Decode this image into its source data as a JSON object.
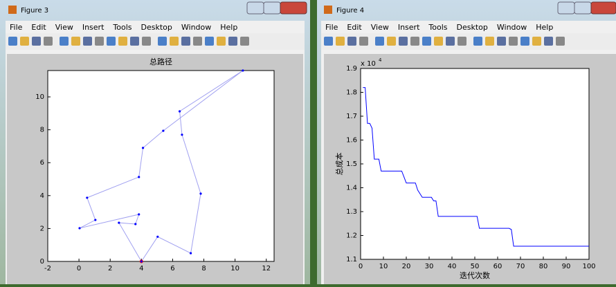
{
  "windows": [
    {
      "title": "Figure 3",
      "menu": [
        "File",
        "Edit",
        "View",
        "Insert",
        "Tools",
        "Desktop",
        "Window",
        "Help"
      ]
    },
    {
      "title": "Figure 4",
      "menu": [
        "File",
        "Edit",
        "View",
        "Insert",
        "Tools",
        "Desktop",
        "Window",
        "Help"
      ]
    }
  ],
  "chart_data": [
    {
      "type": "line",
      "title": "总路径",
      "x": [
        4.0,
        2.56,
        3.62,
        3.84,
        0.04,
        1.05,
        0.52,
        3.84,
        4.1,
        5.4,
        10.5,
        6.45,
        6.6,
        7.8,
        7.16,
        5.04,
        4.0
      ],
      "values": [
        0.0,
        2.35,
        2.27,
        2.86,
        2.02,
        2.52,
        3.87,
        5.13,
        6.9,
        7.94,
        11.6,
        9.12,
        7.7,
        4.12,
        0.5,
        1.5,
        0.0
      ],
      "color": "#a0a0f0",
      "marker_color": "#0000ff",
      "start_marker_color": "#ff0000",
      "xlim": [
        -2,
        12.5
      ],
      "xticks": [
        -2,
        0,
        2,
        4,
        6,
        8,
        10,
        12
      ],
      "ylim": [
        0,
        11.6
      ],
      "yticks": [
        0,
        2,
        4,
        6,
        8,
        10
      ]
    },
    {
      "type": "step",
      "x_label": "迭代次数",
      "y_label": "总成本",
      "scale_base": "x 10",
      "scale_exponent": "4",
      "x": [
        1,
        2,
        3,
        4,
        5,
        6,
        8,
        9,
        18,
        19,
        20,
        24,
        25,
        27,
        31,
        32,
        33,
        34,
        51,
        52,
        65,
        66,
        67,
        100
      ],
      "values": [
        18200,
        18200,
        16700,
        16700,
        16500,
        15200,
        15200,
        14700,
        14700,
        14450,
        14200,
        14200,
        13900,
        13600,
        13600,
        13450,
        13450,
        12800,
        12800,
        12300,
        12300,
        12250,
        11550,
        11550
      ],
      "color": "#0000ff",
      "xlim": [
        0,
        100
      ],
      "xticks": [
        0,
        10,
        20,
        30,
        40,
        50,
        60,
        70,
        80,
        90,
        100
      ],
      "ylim": [
        11000,
        19000
      ],
      "yticks": [
        {
          "value": 11000,
          "label": "1.1"
        },
        {
          "value": 12000,
          "label": "1.2"
        },
        {
          "value": 13000,
          "label": "1.3"
        },
        {
          "value": 14000,
          "label": "1.4"
        },
        {
          "value": 15000,
          "label": "1.5"
        },
        {
          "value": 16000,
          "label": "1.6"
        },
        {
          "value": 17000,
          "label": "1.7"
        },
        {
          "value": 18000,
          "label": "1.8"
        },
        {
          "value": 19000,
          "label": "1.9"
        }
      ]
    }
  ]
}
